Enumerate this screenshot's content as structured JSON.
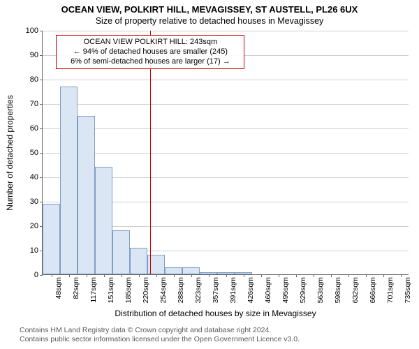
{
  "titles": {
    "line1": "OCEAN VIEW, POLKIRT HILL, MEVAGISSEY, ST AUSTELL, PL26 6UX",
    "line2": "Size of property relative to detached houses in Mevagissey"
  },
  "axis": {
    "ylabel": "Number of detached properties",
    "xlabel": "Distribution of detached houses by size in Mevagissey",
    "ylim": [
      0,
      100
    ],
    "ytick_step": 10,
    "x_categories": [
      "48sqm",
      "82sqm",
      "117sqm",
      "151sqm",
      "185sqm",
      "220sqm",
      "254sqm",
      "288sqm",
      "323sqm",
      "357sqm",
      "391sqm",
      "426sqm",
      "460sqm",
      "495sqm",
      "529sqm",
      "563sqm",
      "598sqm",
      "632sqm",
      "666sqm",
      "701sqm",
      "735sqm"
    ]
  },
  "style": {
    "bar_fill": "#dbe6f4",
    "bar_border": "#7f9dc4",
    "grid_color": "#d0d0d0",
    "axis_color": "#666666",
    "ref_line_color": "#d00000",
    "annotation_border": "#d00000",
    "background": "#ffffff",
    "title_fontsize": 13,
    "subtitle_fontsize": 12.5,
    "label_fontsize": 12,
    "tick_fontsize": 11
  },
  "histogram": {
    "type": "histogram",
    "values": [
      29,
      77,
      65,
      44,
      18,
      11,
      8,
      3,
      3,
      1,
      1,
      1,
      0,
      0,
      0,
      0,
      0,
      0,
      0,
      0,
      0
    ]
  },
  "reference": {
    "x_value_sqm": 243,
    "annotation_lines": {
      "l1": "OCEAN VIEW POLKIRT HILL: 243sqm",
      "l2": "← 94% of detached houses are smaller (245)",
      "l3": "6% of semi-detached houses are larger (17) →"
    }
  },
  "attribution": {
    "l1": "Contains HM Land Registry data © Crown copyright and database right 2024.",
    "l2": "Contains public sector information licensed under the Open Government Licence v3.0."
  }
}
